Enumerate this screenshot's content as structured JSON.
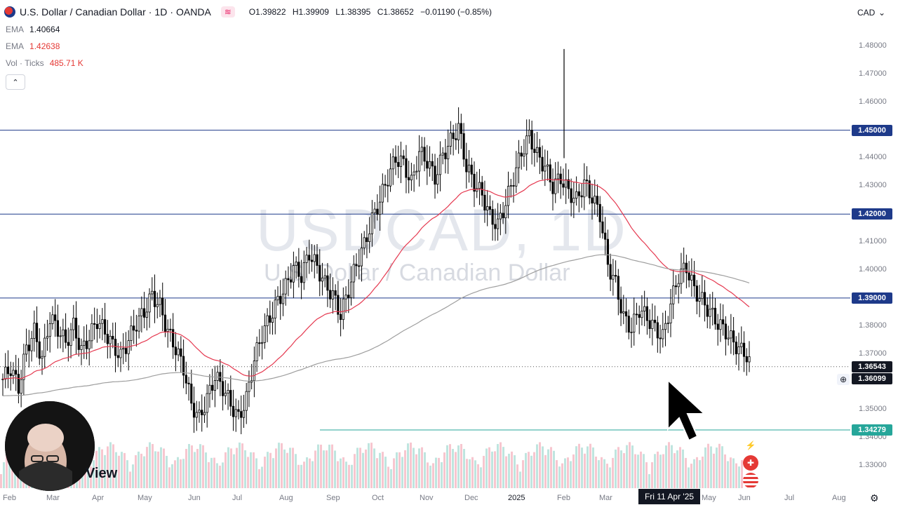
{
  "header": {
    "symbol_title": "U.S. Dollar / Canadian Dollar",
    "timeframe": "1D",
    "broker": "OANDA",
    "ohlc": {
      "o_label": "O",
      "o": "1.39822",
      "h_label": "H",
      "h": "1.39909",
      "l_label": "L",
      "l": "1.38395",
      "c_label": "C",
      "c": "1.38652",
      "change": "−0.01190 (−0.85%)"
    },
    "currency": "CAD"
  },
  "legend": {
    "ema1_label": "EMA",
    "ema1_value": "1.40664",
    "ema2_label": "EMA",
    "ema2_value": "1.42638",
    "vol_label": "Vol · Ticks",
    "vol_value": "485.71 K"
  },
  "watermark": {
    "ticker": "USDCAD, 1D",
    "name": "U.S. Dollar / Canadian Dollar"
  },
  "price_axis": {
    "ticks": [
      "1.48000",
      "1.47000",
      "1.46000",
      "1.44000",
      "1.43000",
      "1.41000",
      "1.40000",
      "1.38000",
      "1.37000",
      "1.35000",
      "1.34000",
      "1.33000"
    ],
    "labels": [
      {
        "text": "1.45000",
        "color": "#1e3a8a"
      },
      {
        "text": "1.42000",
        "color": "#1e3a8a"
      },
      {
        "text": "1.39000",
        "color": "#1e3a8a"
      },
      {
        "text": "1.36543",
        "color": "#131722"
      },
      {
        "text": "1.36099",
        "color": "#131722"
      },
      {
        "text": "1.34279",
        "color": "#26a69a"
      }
    ]
  },
  "time_axis": {
    "ticks": [
      "Feb",
      "Mar",
      "Apr",
      "May",
      "Jun",
      "Jul",
      "Aug",
      "Sep",
      "Oct",
      "Nov",
      "Dec",
      "2025",
      "Feb",
      "Mar",
      "May",
      "Jun",
      "Jul",
      "Aug"
    ],
    "crosshair_label": "Fri 11 Apr '25"
  },
  "overlay": {
    "brand_fragment": "View"
  },
  "chart_data": {
    "type": "candlestick",
    "symbol": "USDCAD",
    "timeframe": "1D",
    "ylim": [
      1.325,
      1.485
    ],
    "horizontal_levels": [
      1.45,
      1.42,
      1.39,
      1.34279
    ],
    "last_price": 1.36543,
    "crosshair_price": 1.36099,
    "indicators": [
      "EMA 50",
      "EMA 200",
      "Volume (Ticks)"
    ],
    "ema_values": [
      1.40664,
      1.42638
    ],
    "volume_last": "485.71 K",
    "colors": {
      "up": "#000000",
      "down": "#000000",
      "ema_fast": "#e53950",
      "ema_slow": "#9e9e9e",
      "level": "#1e3a8a",
      "support": "#26a69a"
    },
    "close_path": [
      1.361,
      1.365,
      1.358,
      1.372,
      1.378,
      1.368,
      1.383,
      1.379,
      1.374,
      1.38,
      1.371,
      1.376,
      1.382,
      1.378,
      1.373,
      1.369,
      1.375,
      1.381,
      1.385,
      1.391,
      1.387,
      1.378,
      1.372,
      1.365,
      1.352,
      1.347,
      1.354,
      1.362,
      1.358,
      1.352,
      1.347,
      1.354,
      1.368,
      1.377,
      1.383,
      1.389,
      1.394,
      1.401,
      1.398,
      1.406,
      1.401,
      1.395,
      1.391,
      1.384,
      1.393,
      1.402,
      1.409,
      1.418,
      1.425,
      1.433,
      1.44,
      1.438,
      1.431,
      1.442,
      1.439,
      1.433,
      1.441,
      1.446,
      1.451,
      1.437,
      1.431,
      1.427,
      1.419,
      1.416,
      1.424,
      1.433,
      1.442,
      1.448,
      1.441,
      1.437,
      1.43,
      1.433,
      1.428,
      1.425,
      1.431,
      1.426,
      1.42,
      1.402,
      1.395,
      1.383,
      1.379,
      1.386,
      1.383,
      1.379,
      1.376,
      1.388,
      1.398,
      1.401,
      1.393,
      1.389,
      1.385,
      1.381,
      1.378,
      1.374,
      1.371,
      1.369
    ]
  }
}
